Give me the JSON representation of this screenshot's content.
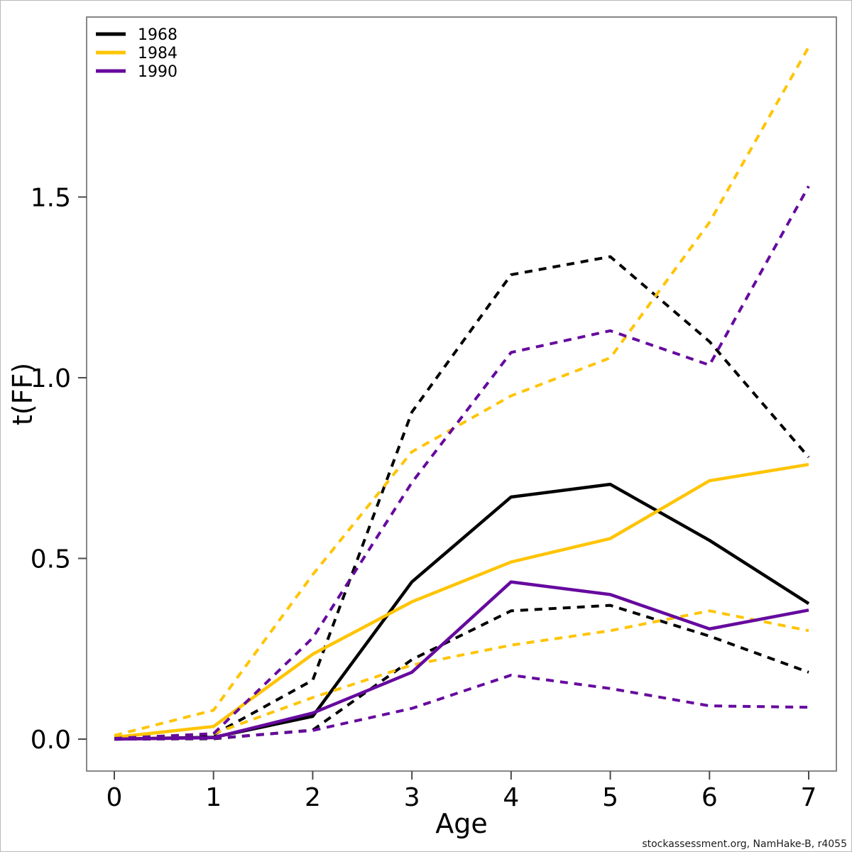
{
  "figure": {
    "footer_text": "stockassessment.org, NamHake-B, r4055",
    "background_color": "#ffffff",
    "frame_color": "#878787"
  },
  "chart_data": {
    "type": "line",
    "title": "",
    "xlabel": "Age",
    "ylabel": "t(FF)",
    "grid": false,
    "legend_position": "top-left",
    "x": [
      0,
      1,
      2,
      3,
      4,
      5,
      6,
      7
    ],
    "x_tick_labels": [
      "0",
      "1",
      "2",
      "3",
      "4",
      "5",
      "6",
      "7"
    ],
    "y_tick_values": [
      0.0,
      0.5,
      1.0,
      1.5
    ],
    "y_tick_labels": [
      "0.0",
      "0.5",
      "1.0",
      "1.5"
    ],
    "xlim": [
      -0.28,
      7.28
    ],
    "ylim": [
      -0.088,
      2.0
    ],
    "legend": [
      {
        "label": "1968",
        "color": "#000000"
      },
      {
        "label": "1984",
        "color": "#FFC404"
      },
      {
        "label": "1990",
        "color": "#660A9E"
      }
    ],
    "series": [
      {
        "name": "1968-estimate",
        "year": "1968",
        "role": "estimate",
        "style": "solid",
        "color": "#000000",
        "values": [
          0.0,
          0.005,
          0.063,
          0.435,
          0.67,
          0.705,
          0.55,
          0.375
        ]
      },
      {
        "name": "1968-upper-ci",
        "year": "1968",
        "role": "upper-ci",
        "style": "dashed",
        "color": "#000000",
        "values": [
          0.003,
          0.012,
          0.163,
          0.905,
          1.285,
          1.335,
          1.1,
          0.78
        ]
      },
      {
        "name": "1968-lower-ci",
        "year": "1968",
        "role": "lower-ci",
        "style": "dashed",
        "color": "#000000",
        "values": [
          0.0,
          0.001,
          0.025,
          0.22,
          0.355,
          0.37,
          0.285,
          0.185
        ]
      },
      {
        "name": "1984-estimate",
        "year": "1984",
        "role": "estimate",
        "style": "solid",
        "color": "#FFC404",
        "values": [
          0.005,
          0.035,
          0.235,
          0.38,
          0.49,
          0.555,
          0.715,
          0.76
        ]
      },
      {
        "name": "1984-upper-ci",
        "year": "1984",
        "role": "upper-ci",
        "style": "dashed",
        "color": "#FFC404",
        "values": [
          0.01,
          0.08,
          0.455,
          0.795,
          0.95,
          1.055,
          1.43,
          1.915
        ]
      },
      {
        "name": "1984-lower-ci",
        "year": "1984",
        "role": "lower-ci",
        "style": "dashed",
        "color": "#FFC404",
        "values": [
          0.002,
          0.015,
          0.115,
          0.205,
          0.26,
          0.3,
          0.355,
          0.3
        ]
      },
      {
        "name": "1990-estimate",
        "year": "1990",
        "role": "estimate",
        "style": "solid",
        "color": "#660A9E",
        "values": [
          0.0,
          0.004,
          0.072,
          0.185,
          0.435,
          0.4,
          0.305,
          0.357
        ]
      },
      {
        "name": "1990-upper-ci",
        "year": "1990",
        "role": "upper-ci",
        "style": "dashed",
        "color": "#660A9E",
        "values": [
          0.002,
          0.015,
          0.28,
          0.71,
          1.07,
          1.13,
          1.035,
          1.53
        ]
      },
      {
        "name": "1990-lower-ci",
        "year": "1990",
        "role": "lower-ci",
        "style": "dashed",
        "color": "#660A9E",
        "values": [
          0.0,
          0.002,
          0.024,
          0.085,
          0.177,
          0.14,
          0.092,
          0.088
        ]
      }
    ]
  }
}
